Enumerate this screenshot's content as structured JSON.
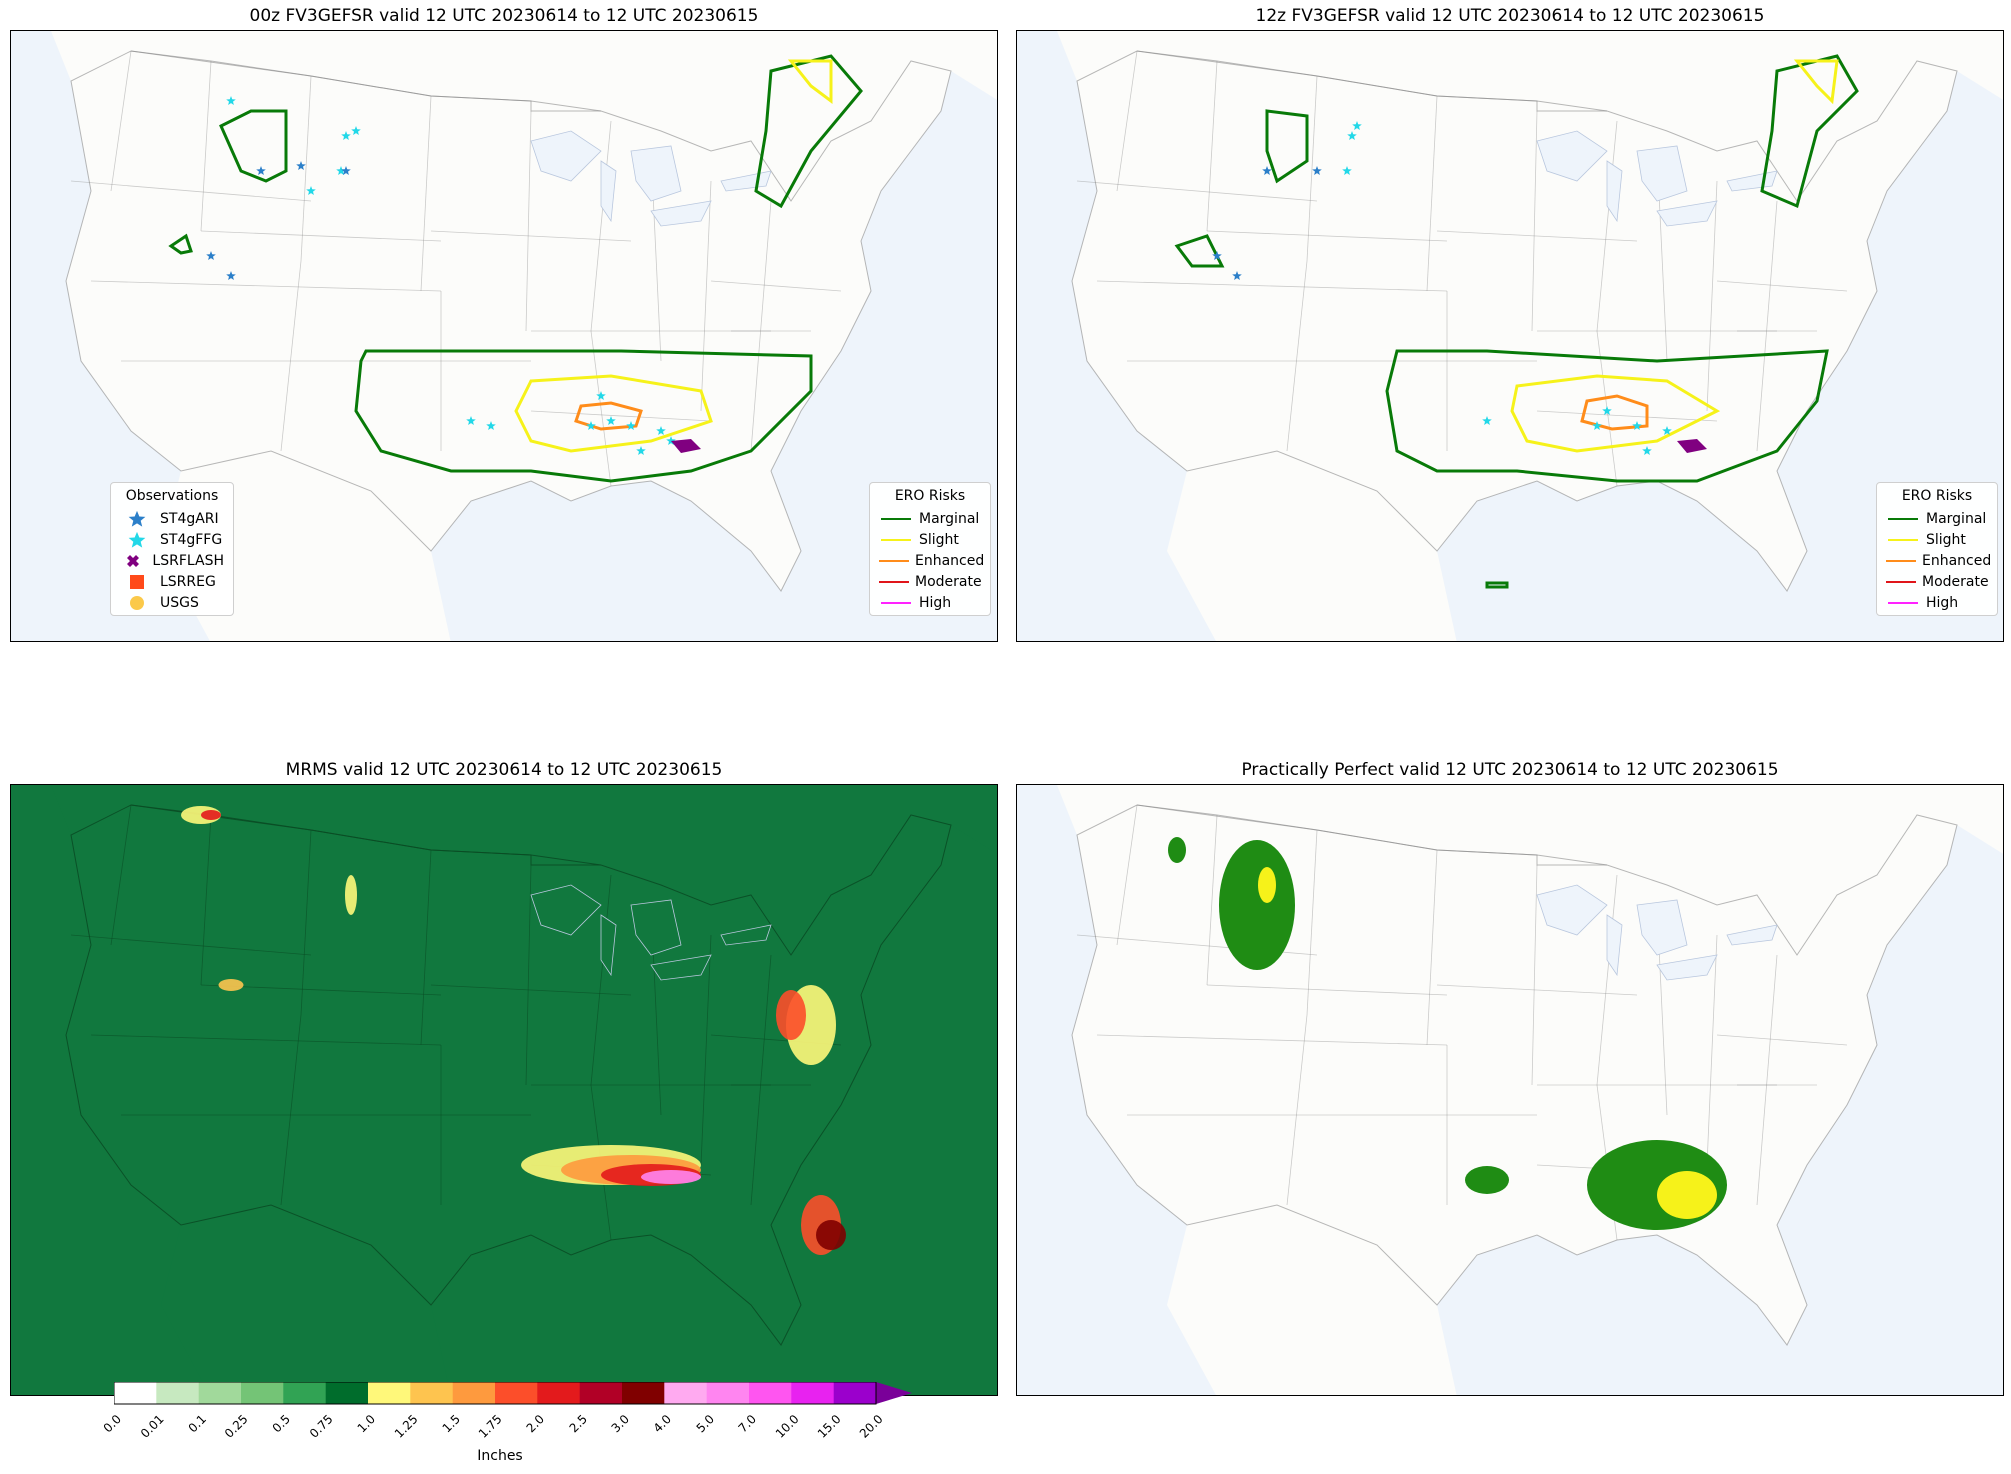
{
  "panels": [
    {
      "id": "p1",
      "title": "00z FV3GEFSR valid 12 UTC 20230614 to 12 UTC 20230615"
    },
    {
      "id": "p2",
      "title": "12z FV3GEFSR valid 12 UTC 20230614 to 12 UTC 20230615"
    },
    {
      "id": "p3",
      "title": "MRMS valid 12 UTC 20230614 to 12 UTC 20230615"
    },
    {
      "id": "p4",
      "title": "Practically Perfect valid 12 UTC 20230614 to 12 UTC 20230615"
    }
  ],
  "observations_legend": {
    "title": "Observations",
    "items": [
      {
        "label": "ST4gARI",
        "color": "#2b7fc9",
        "symbol": "star-icon"
      },
      {
        "label": "ST4gFFG",
        "color": "#22d8e8",
        "symbol": "star-icon"
      },
      {
        "label": "LSRFLASH",
        "color": "#800080",
        "symbol": "x-icon"
      },
      {
        "label": "LSRREG",
        "color": "#ff4a1a",
        "symbol": "square-icon"
      },
      {
        "label": "USGS",
        "color": "#fbc94a",
        "symbol": "circle-icon"
      }
    ]
  },
  "ero_legend": {
    "title": "ERO Risks",
    "items": [
      {
        "label": "Marginal",
        "color": "#087a08"
      },
      {
        "label": "Slight",
        "color": "#f6f21a"
      },
      {
        "label": "Enhanced",
        "color": "#ff8c1a"
      },
      {
        "label": "Moderate",
        "color": "#e0151a"
      },
      {
        "label": "High",
        "color": "#ff22ff"
      }
    ]
  },
  "colorbar": {
    "label": "Inches",
    "ticks": [
      "0.0",
      "0.01",
      "0.1",
      "0.25",
      "0.5",
      "0.75",
      "1.0",
      "1.25",
      "1.5",
      "1.75",
      "2.0",
      "2.5",
      "3.0",
      "4.0",
      "5.0",
      "7.0",
      "10.0",
      "15.0",
      "20.0"
    ],
    "colors": [
      "#ffffff",
      "#c7e9c0",
      "#a1d99b",
      "#74c476",
      "#31a354",
      "#006d2c",
      "#fff87a",
      "#fec44f",
      "#fe9a3e",
      "#fc4e2a",
      "#e31a1c",
      "#b10026",
      "#800000",
      "#ffaaf0",
      "#ff85f0",
      "#ff55f0",
      "#e822f0",
      "#9b00cc"
    ],
    "extend_color": "#7a0099"
  },
  "colors": {
    "map_land": "#fcfcfa",
    "map_ocean": "#eef4fb",
    "mrms_background": "#11783e",
    "pp_marginal": "#1f8c14",
    "pp_slight": "#f6f21a"
  }
}
